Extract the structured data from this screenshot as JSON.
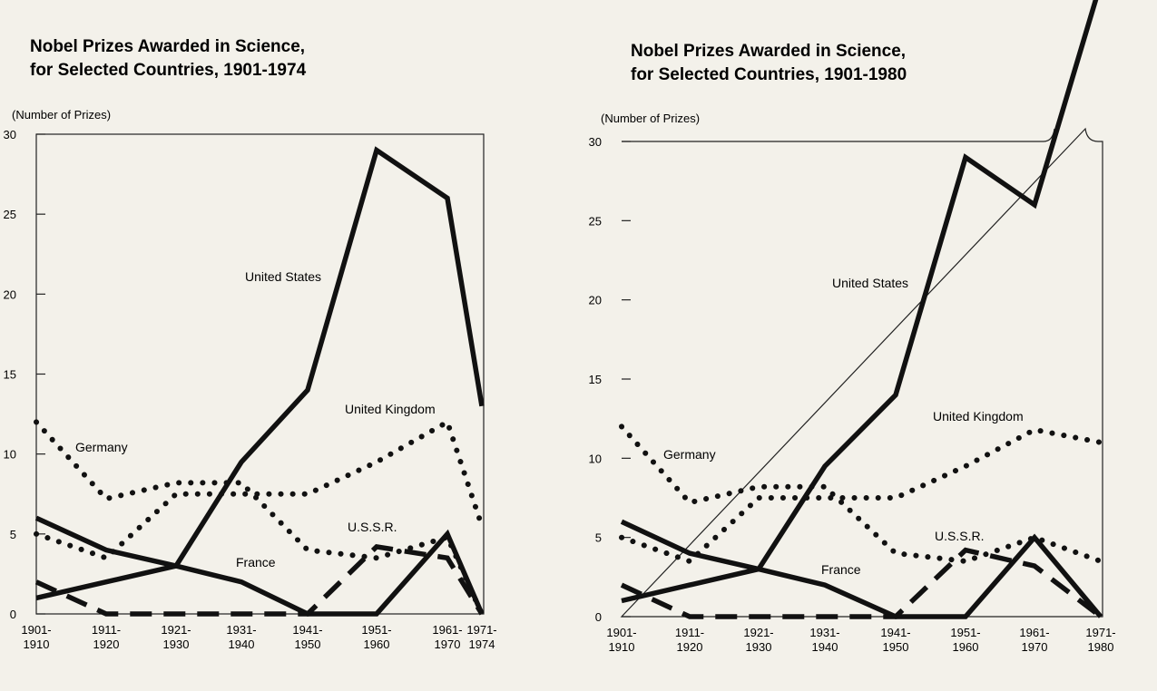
{
  "chart_data": [
    {
      "type": "line",
      "title_lines": [
        "Nobel Prizes Awarded in Science,",
        "for Selected Countries, 1901-1974"
      ],
      "unit_label": "(Number of Prizes)",
      "ylim": [
        0,
        30
      ],
      "y_ticks": [
        "0",
        "5",
        "10",
        "15",
        "20",
        "25",
        "30"
      ],
      "categories": [
        [
          "1901-",
          "1910"
        ],
        [
          "1911-",
          "1920"
        ],
        [
          "1921-",
          "1930"
        ],
        [
          "1931-",
          "1940"
        ],
        [
          "1941-",
          "1950"
        ],
        [
          "1951-",
          "1960"
        ],
        [
          "1961-",
          "1970"
        ],
        [
          "1971-",
          "1974"
        ]
      ],
      "series": [
        {
          "name": "United States",
          "style": "solid",
          "values": [
            1,
            2,
            3,
            9.5,
            14,
            29,
            26,
            13
          ]
        },
        {
          "name": "United Kingdom",
          "style": "dotted",
          "values": [
            5,
            3.5,
            7.5,
            7.5,
            7.5,
            9.5,
            12,
            5.5
          ]
        },
        {
          "name": "Germany",
          "style": "dotted",
          "values": [
            12,
            7.2,
            8.2,
            8.2,
            4,
            3.5,
            4.8,
            0
          ]
        },
        {
          "name": "France",
          "style": "solid",
          "values": [
            6,
            4,
            3,
            2,
            0,
            0,
            5,
            0
          ]
        },
        {
          "name": "U.S.S.R.",
          "style": "dashed",
          "values": [
            2,
            0,
            0,
            0,
            0,
            4.2,
            3.5,
            0
          ]
        }
      ],
      "grid": false
    },
    {
      "type": "line",
      "title_lines": [
        "Nobel Prizes Awarded in Science,",
        "for Selected Countries, 1901-1980"
      ],
      "unit_label": "(Number of Prizes)",
      "ylim": [
        0,
        30
      ],
      "y_ticks": [
        "0",
        "5",
        "10",
        "15",
        "20",
        "25",
        "30"
      ],
      "categories": [
        [
          "1901-",
          "1910"
        ],
        [
          "1911-",
          "1920"
        ],
        [
          "1921-",
          "1930"
        ],
        [
          "1931-",
          "1940"
        ],
        [
          "1941-",
          "1950"
        ],
        [
          "1951-",
          "1960"
        ],
        [
          "1961-",
          "1970"
        ],
        [
          "1971-",
          "1980"
        ]
      ],
      "series": [
        {
          "name": "United States",
          "style": "solid",
          "values": [
            1,
            2,
            3,
            9.5,
            14,
            29,
            26,
            40
          ]
        },
        {
          "name": "United Kingdom",
          "style": "dotted",
          "values": [
            5,
            3.5,
            7.5,
            7.5,
            7.5,
            9.5,
            11.8,
            11
          ]
        },
        {
          "name": "Germany",
          "style": "dotted",
          "values": [
            12,
            7.2,
            8.2,
            8.2,
            4,
            3.5,
            5,
            3.5
          ]
        },
        {
          "name": "France",
          "style": "solid",
          "values": [
            6,
            4,
            3,
            2,
            0,
            0,
            5,
            0
          ]
        },
        {
          "name": "U.S.S.R.",
          "style": "dashed",
          "values": [
            2,
            0,
            0,
            0,
            0,
            4.2,
            3.2,
            0
          ]
        }
      ],
      "grid": false
    }
  ]
}
